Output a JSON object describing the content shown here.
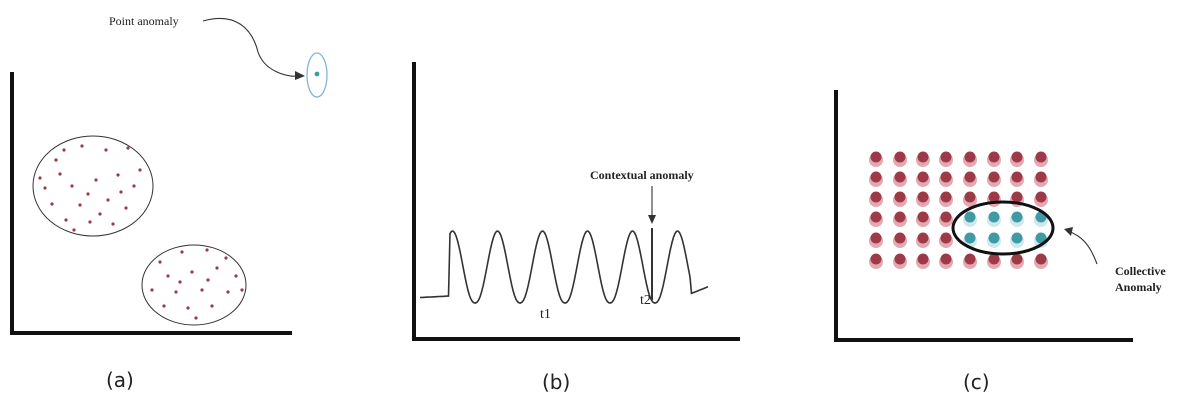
{
  "panels": [
    {
      "id": "a",
      "caption": "(a)",
      "annotation": "Point anomaly"
    },
    {
      "id": "b",
      "caption": "(b)",
      "annotation": "Contextual anomaly",
      "tick_labels": [
        "t1",
        "t2"
      ]
    },
    {
      "id": "c",
      "caption": "(c)",
      "annotation_lines": [
        "Collective",
        "Anomaly"
      ]
    }
  ],
  "colors": {
    "axis": "#111111",
    "normal_point": "#9e3a48",
    "normal_point_light": "#e3a9b0",
    "anomaly_point": "#3f9aa6",
    "anomaly_point_light": "#cfe8ec",
    "anomaly_ring": "#7fb7d6",
    "curve": "#333333"
  }
}
